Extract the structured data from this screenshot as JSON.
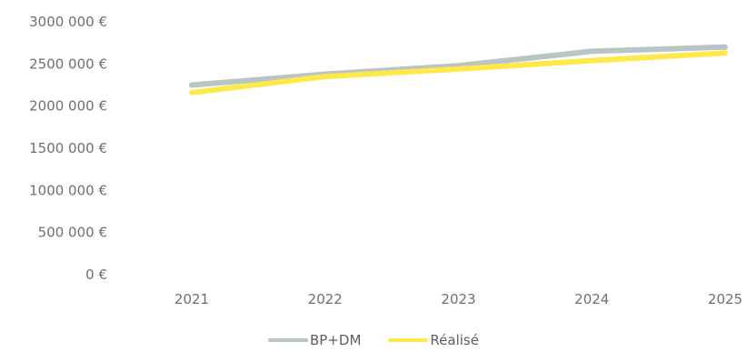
{
  "chart_data": {
    "type": "line",
    "categories": [
      "2021",
      "2022",
      "2023",
      "2024",
      "2025"
    ],
    "y_tick_labels": [
      "0 €",
      "500 000 €",
      "1000 000 €",
      "1500 000 €",
      "2000 000 €",
      "2500 000 €",
      "3000 000 €"
    ],
    "ylim": [
      0,
      3000000
    ],
    "grid": false,
    "legend_position": "bottom",
    "series": [
      {
        "name": "BP+DM",
        "color": "#b9c4c6",
        "values": [
          2250000,
          2380000,
          2480000,
          2650000,
          2700000
        ]
      },
      {
        "name": "Réalisé",
        "color": "#ffe94a",
        "values": [
          2160000,
          2350000,
          2440000,
          2540000,
          2630000
        ]
      }
    ]
  }
}
